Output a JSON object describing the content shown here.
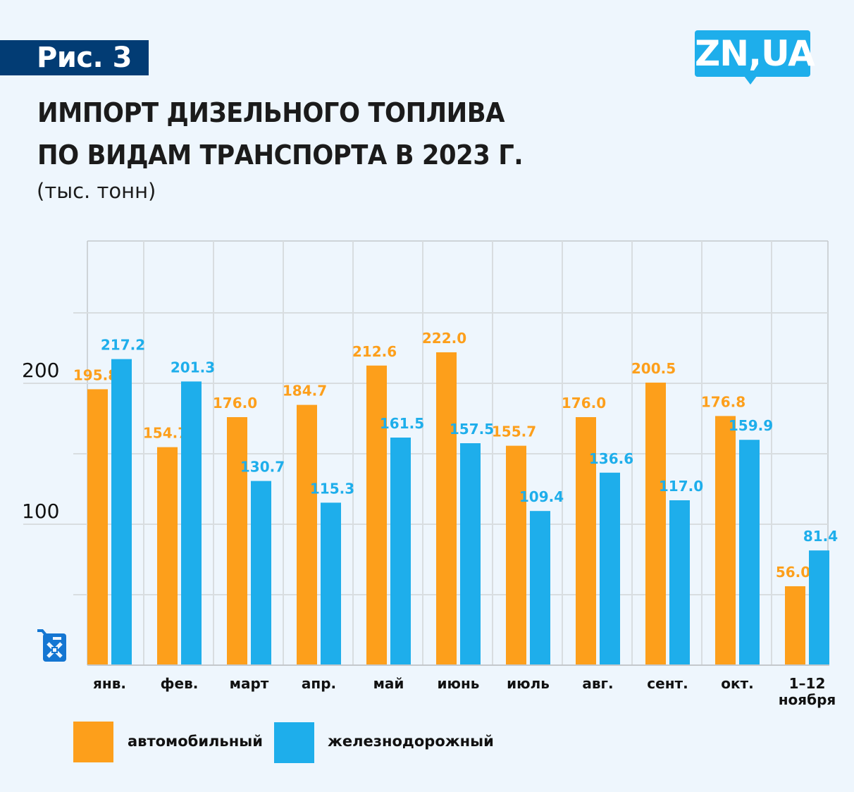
{
  "figure_label": "Рис. 3",
  "logo": {
    "text": "ZN,UA"
  },
  "title_lines": [
    "ИМПОРТ ДИЗЕЛЬНОГО ТОПЛИВА",
    "ПО ВИДАМ ТРАНСПОРТА В 2023 Г."
  ],
  "unit": "(тыс. тонн)",
  "colors": {
    "background": "#eef6fd",
    "badge": "#023c74",
    "logo": "#1eaeeb",
    "road": "#fd9f1b",
    "rail": "#1eaeeb",
    "icon": "#1476d2"
  },
  "icons": {
    "axis_icon": "fuel-canister-icon"
  },
  "chart_data": {
    "type": "bar",
    "title": "ИМПОРТ ДИЗЕЛЬНОГО ТОПЛИВА ПО ВИДАМ ТРАНСПОРТА В 2023 Г.",
    "subtitle": "(тыс. тонн)",
    "xlabel": "",
    "ylabel": "",
    "categories": [
      "янв.",
      "фев.",
      "март",
      "апр.",
      "май",
      "июнь",
      "июль",
      "авг.",
      "сент.",
      "окт.",
      "1–12 ноября"
    ],
    "category_lines": [
      [
        "янв."
      ],
      [
        "фев."
      ],
      [
        "март"
      ],
      [
        "апр."
      ],
      [
        "май"
      ],
      [
        "июнь"
      ],
      [
        "июль"
      ],
      [
        "авг."
      ],
      [
        "сент."
      ],
      [
        "окт."
      ],
      [
        "1–12",
        "ноября"
      ]
    ],
    "series": [
      {
        "name": "автомобильный",
        "color": "#fd9f1b",
        "values": [
          195.8,
          154.7,
          176.0,
          184.7,
          212.6,
          222.0,
          155.7,
          176.0,
          200.5,
          176.8,
          56.0
        ]
      },
      {
        "name": "железнодорожный",
        "color": "#1eaeeb",
        "values": [
          217.2,
          201.3,
          130.7,
          115.3,
          161.5,
          157.5,
          109.4,
          136.6,
          117.0,
          159.9,
          81.4
        ]
      }
    ],
    "ylim": [
      0,
      300
    ],
    "yticks_labeled": [
      100,
      200
    ],
    "gridlines": [
      50,
      100,
      150,
      200,
      250
    ],
    "grid": true,
    "legend_position": "bottom-left"
  }
}
